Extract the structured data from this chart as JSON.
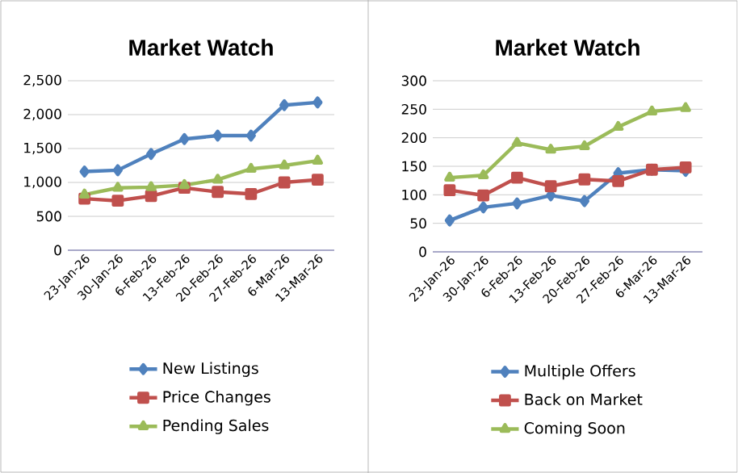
{
  "chart_data": [
    {
      "type": "line",
      "title": "Market Watch",
      "categories": [
        "23-Jan-26",
        "30-Jan-26",
        "6-Feb-26",
        "13-Feb-26",
        "20-Feb-26",
        "27-Feb-26",
        "6-Mar-26",
        "13-Mar-26"
      ],
      "series": [
        {
          "name": "New Listings",
          "color": "#4f81bd",
          "marker": "diamond",
          "values": [
            1160,
            1180,
            1420,
            1640,
            1690,
            1690,
            2140,
            2180
          ]
        },
        {
          "name": "Price Changes",
          "color": "#c0504d",
          "marker": "square",
          "values": [
            760,
            730,
            800,
            920,
            860,
            830,
            1000,
            1040
          ]
        },
        {
          "name": "Pending Sales",
          "color": "#9bbb59",
          "marker": "triangle",
          "values": [
            820,
            920,
            930,
            960,
            1040,
            1200,
            1250,
            1320
          ]
        }
      ],
      "ylim": [
        0,
        2500
      ],
      "yticks": [
        0,
        500,
        {
          "value": 1000,
          "label": "1,000"
        },
        {
          "value": 1500,
          "label": "1,500"
        },
        {
          "value": 2000,
          "label": "2,000"
        },
        {
          "value": 2500,
          "label": "2,500"
        }
      ],
      "grid": "y",
      "legend": "bottom"
    },
    {
      "type": "line",
      "title": "Market Watch",
      "categories": [
        "23-Jan-26",
        "30-Jan-26",
        "6-Feb-26",
        "13-Feb-26",
        "20-Feb-26",
        "27-Feb-26",
        "6-Mar-26",
        "13-Mar-26"
      ],
      "series": [
        {
          "name": "Multiple Offers",
          "color": "#4f81bd",
          "marker": "diamond",
          "values": [
            55,
            78,
            85,
            99,
            89,
            138,
            144,
            142
          ]
        },
        {
          "name": "Back on Market",
          "color": "#c0504d",
          "marker": "square",
          "values": [
            108,
            99,
            130,
            115,
            127,
            124,
            144,
            148
          ]
        },
        {
          "name": "Coming Soon",
          "color": "#9bbb59",
          "marker": "triangle",
          "values": [
            130,
            134,
            191,
            179,
            185,
            219,
            246,
            252
          ]
        }
      ],
      "ylim": [
        0,
        300
      ],
      "yticks": [
        0,
        50,
        100,
        150,
        200,
        250,
        300
      ],
      "grid": "y",
      "legend": "bottom"
    }
  ]
}
